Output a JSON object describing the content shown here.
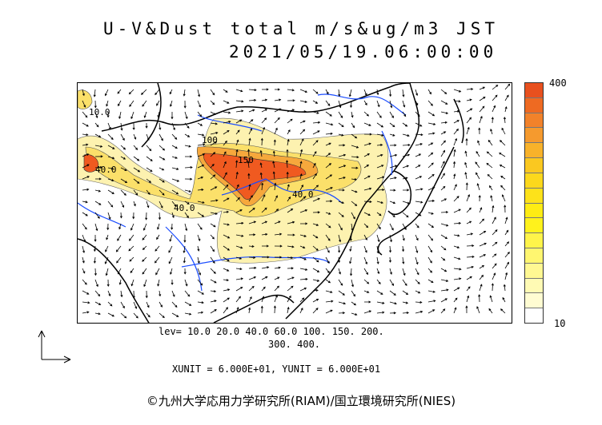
{
  "header": {
    "title": "U-V&Dust total m/s&ug/m3 JST",
    "datetime": "2021/05/19.06:00:00"
  },
  "colorbar": {
    "max_label": "400",
    "min_label": "10",
    "colors": [
      "#e8501e",
      "#ee6a22",
      "#f2822a",
      "#f59a2e",
      "#f8b22a",
      "#fac820",
      "#fcd81c",
      "#fde21a",
      "#feec14",
      "#fff21c",
      "#fff44a",
      "#fff670",
      "#fff892",
      "#fffab4",
      "#fffcd2",
      "#ffffff"
    ]
  },
  "contour_labels": [
    "150",
    "100",
    "40.0",
    "40.0",
    "40.0",
    "10.0"
  ],
  "levels": {
    "line1": "lev= 10.0 20.0 40.0 60.0 100. 150. 200.",
    "line2": "300. 400."
  },
  "units_text": "XUNIT = 6.000E+01, YUNIT = 6.000E+01",
  "credit": "©九州大学応用力学研究所(RIAM)/国立環境研究所(NIES)",
  "map_colors": {
    "dust_light": "#fdf2b0",
    "dust_mid": "#fbe06a",
    "dust_high": "#f6a83c",
    "dust_peak": "#f05a20",
    "river": "#1a4cff",
    "coast": "#000000",
    "arrow": "#000000"
  }
}
